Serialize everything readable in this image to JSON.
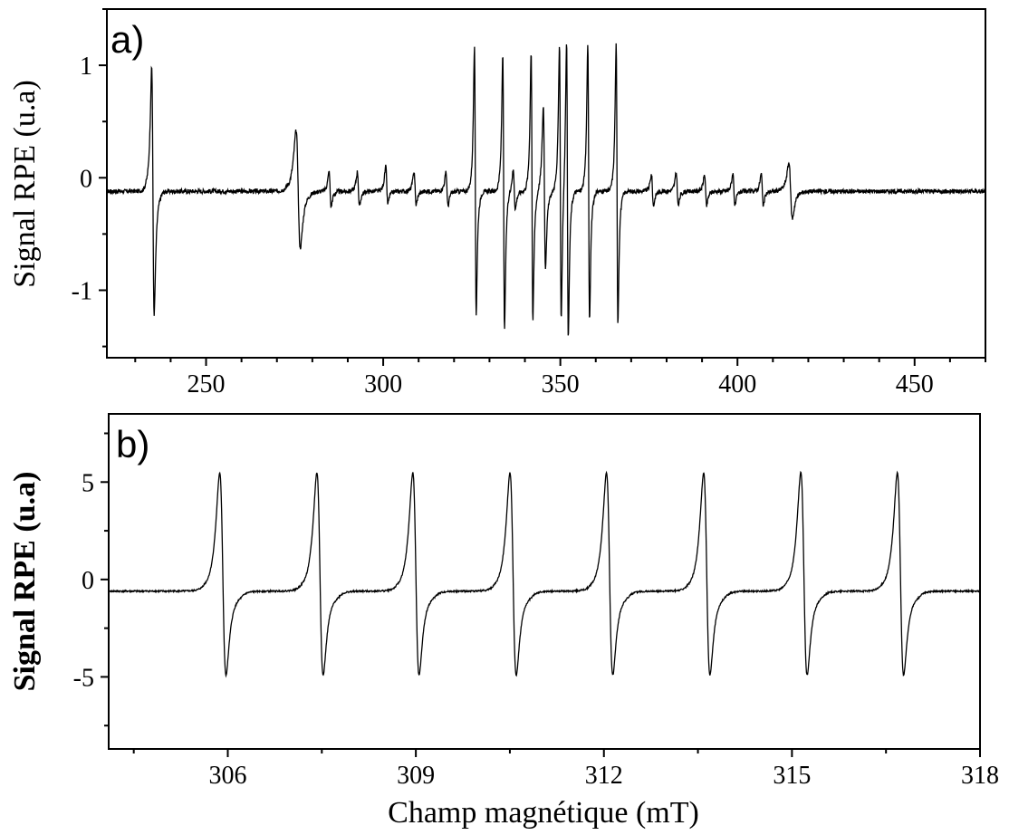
{
  "chart_data": [
    {
      "type": "line",
      "panel_label": "a)",
      "xlabel": "",
      "ylabel": "Signal RPE (u.a)",
      "xlim": [
        222,
        470
      ],
      "ylim": [
        -1.6,
        1.5
      ],
      "x_ticks": [
        250,
        300,
        350,
        400,
        450
      ],
      "x_minor_step": 10,
      "y_ticks": [
        -1,
        0,
        1
      ],
      "y_minor_step": 0.5,
      "grid": false,
      "series": [
        {
          "baseline": -0.12,
          "noise": 0.02,
          "peaks": [
            {
              "x": 235,
              "max": 1.15,
              "min": -1.38,
              "width": 0.35
            },
            {
              "x": 276,
              "max": 0.5,
              "min": -0.7,
              "width": 0.6
            },
            {
              "x": 326,
              "max": 1.35,
              "min": -1.38,
              "width": 0.25
            },
            {
              "x": 334,
              "max": 1.3,
              "min": -1.55,
              "width": 0.25
            },
            {
              "x": 342,
              "max": 1.32,
              "min": -1.45,
              "width": 0.25
            },
            {
              "x": 345.5,
              "max": 0.75,
              "min": -0.9,
              "width": 0.3
            },
            {
              "x": 350,
              "max": 1.38,
              "min": -1.48,
              "width": 0.25
            },
            {
              "x": 352,
              "max": 1.47,
              "min": -1.62,
              "width": 0.25
            },
            {
              "x": 358,
              "max": 1.4,
              "min": -1.46,
              "width": 0.25
            },
            {
              "x": 366,
              "max": 1.38,
              "min": -1.47,
              "width": 0.25
            },
            {
              "x": 415,
              "max": 0.17,
              "min": -0.4,
              "width": 0.5
            },
            {
              "x": 285,
              "max": 0.08,
              "min": -0.28,
              "width": 0.3
            },
            {
              "x": 293,
              "max": 0.08,
              "min": -0.28,
              "width": 0.3
            },
            {
              "x": 301,
              "max": 0.13,
              "min": -0.25,
              "width": 0.3
            },
            {
              "x": 309,
              "max": 0.08,
              "min": -0.26,
              "width": 0.3
            },
            {
              "x": 318,
              "max": 0.07,
              "min": -0.27,
              "width": 0.3
            },
            {
              "x": 337,
              "max": 0.1,
              "min": -0.3,
              "width": 0.3
            },
            {
              "x": 376,
              "max": 0.05,
              "min": -0.27,
              "width": 0.3
            },
            {
              "x": 383,
              "max": 0.07,
              "min": -0.27,
              "width": 0.3
            },
            {
              "x": 391,
              "max": 0.05,
              "min": -0.27,
              "width": 0.3
            },
            {
              "x": 399,
              "max": 0.06,
              "min": -0.27,
              "width": 0.3
            },
            {
              "x": 407,
              "max": 0.06,
              "min": -0.27,
              "width": 0.3
            }
          ]
        }
      ]
    },
    {
      "type": "line",
      "panel_label": "b)",
      "xlabel": "Champ magnétique (mT)",
      "ylabel": "Signal RPE (u.a)",
      "xlim": [
        304.1,
        318
      ],
      "ylim": [
        -8.7,
        8.5
      ],
      "x_ticks": [
        306,
        309,
        312,
        315,
        318
      ],
      "x_minor_step": 1.5,
      "y_ticks": [
        -5,
        0,
        5
      ],
      "y_minor_step": 2.5,
      "grid": false,
      "series": [
        {
          "baseline": -0.6,
          "noise": 0.04,
          "clip": [
            -5.6,
            6.4
          ],
          "peaks": [
            {
              "x": 305.92,
              "max": 6.4,
              "min": -5.6
            },
            {
              "x": 307.47,
              "max": 6.4,
              "min": -5.6
            },
            {
              "x": 309.0,
              "max": 6.4,
              "min": -5.6
            },
            {
              "x": 310.55,
              "max": 6.4,
              "min": -5.6
            },
            {
              "x": 312.09,
              "max": 6.4,
              "min": -5.6
            },
            {
              "x": 313.64,
              "max": 6.4,
              "min": -5.6
            },
            {
              "x": 315.19,
              "max": 6.4,
              "min": -5.6
            },
            {
              "x": 316.73,
              "max": 6.4,
              "min": -5.6
            }
          ]
        }
      ]
    }
  ]
}
